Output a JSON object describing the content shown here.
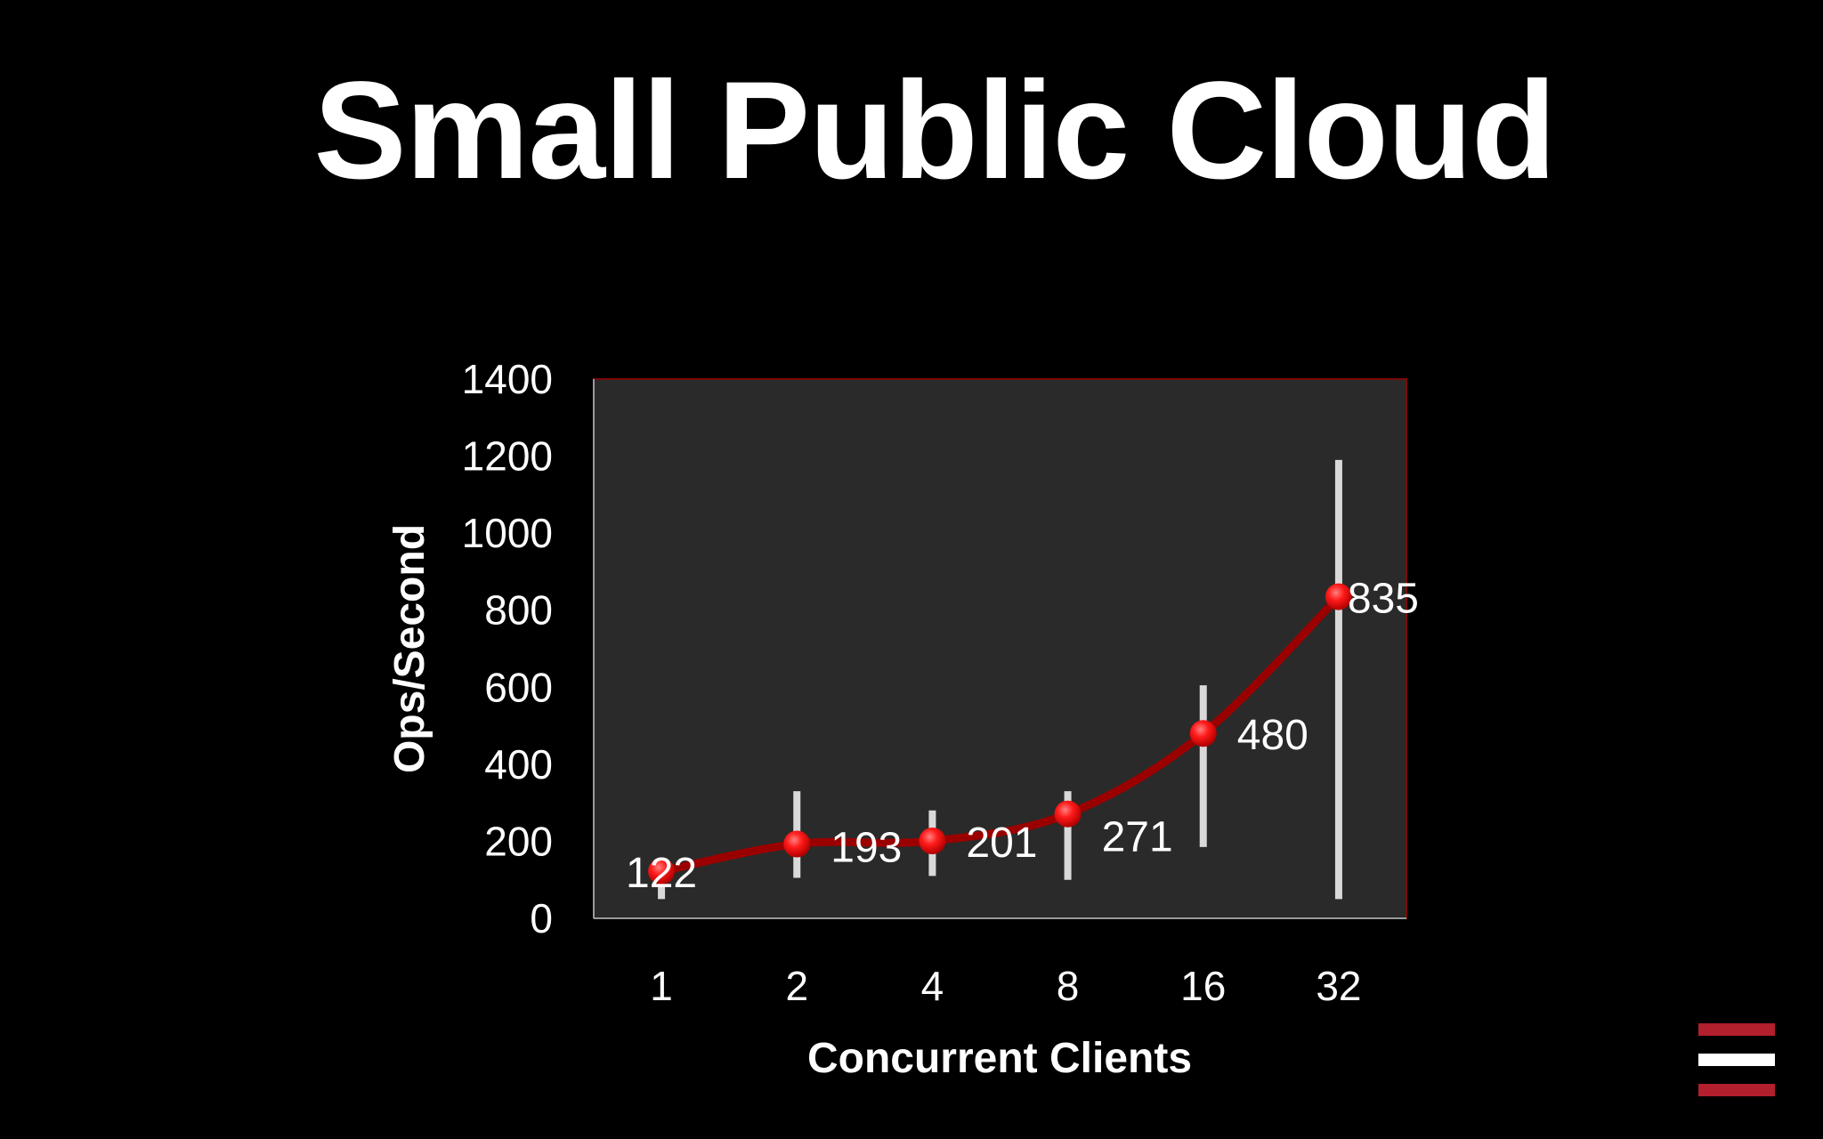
{
  "slide": {
    "title": "Small Public Cloud"
  },
  "colors": {
    "background": "#000000",
    "plot_area": "#2a2a2a",
    "series_line": "#9b0000",
    "marker": "#ff1a1a",
    "error_bar": "#d9d9d9",
    "logo_red": "#b21f2d",
    "logo_white": "#ffffff"
  },
  "logo": {
    "icon": "stacked-bars-logo-icon"
  },
  "chart_data": {
    "type": "line",
    "xlabel": "Concurrent Clients",
    "ylabel": "Ops/Second",
    "categories": [
      "1",
      "2",
      "4",
      "8",
      "16",
      "32"
    ],
    "ylim": [
      0,
      1400
    ],
    "yticks": [
      "0",
      "200",
      "400",
      "600",
      "800",
      "1000",
      "1200",
      "1400"
    ],
    "grid": false,
    "legend": "none",
    "series": [
      {
        "values": [
          122,
          193,
          201,
          271,
          480,
          835
        ],
        "labels": [
          "122",
          "193",
          "201",
          "271",
          "480",
          "835"
        ],
        "error_low": [
          50,
          105,
          110,
          100,
          185,
          50
        ],
        "error_high": [
          125,
          330,
          280,
          330,
          605,
          1190
        ]
      }
    ]
  }
}
